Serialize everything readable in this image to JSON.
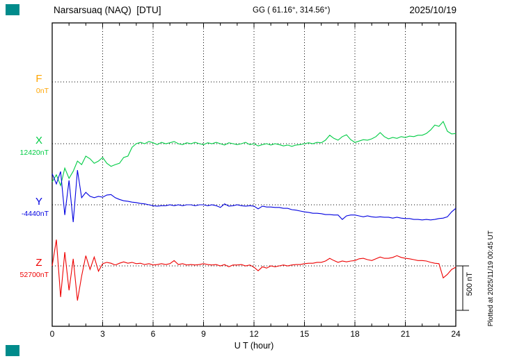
{
  "header": {
    "station_title": "Narsarsuaq (NAQ)  [DTU]",
    "coords_label": "GG ( 61.16°, 314.56°)",
    "date": "2025/10/19"
  },
  "side_note": "Plotted at 2025/11/19 00:45 UT",
  "scale_bar_label": "500 nT",
  "chart_data": {
    "type": "line",
    "title": "Narsarsuaq (NAQ) [DTU] magnetogram 2025/10/19",
    "xlabel": "U T (hour)",
    "x_min": 0,
    "x_max": 24,
    "x_ticks": [
      0,
      3,
      6,
      9,
      12,
      15,
      18,
      21,
      24
    ],
    "x_step_hours": 0.25,
    "scale_bar_nt": 500,
    "grid": "dotted horizontal line at each component baseline, dotted vertical lines every 3 hours",
    "legend_position": "left margin, stacked F/X/Y/Z with baseline values",
    "series": [
      {
        "name": "F",
        "color": "#ffa500",
        "baseline_label": "0nT",
        "baseline_nt": 0,
        "values": []
      },
      {
        "name": "X",
        "color": "#00cc44",
        "baseline_label": "12420nT",
        "baseline_nt": 12420,
        "values": [
          11990,
          12070,
          11950,
          12145,
          12030,
          12110,
          12225,
          12185,
          12280,
          12250,
          12200,
          12225,
          12265,
          12200,
          12165,
          12185,
          12200,
          12265,
          12280,
          12380,
          12420,
          12435,
          12420,
          12445,
          12430,
          12410,
          12435,
          12420,
          12430,
          12445,
          12420,
          12410,
          12430,
          12420,
          12435,
          12420,
          12410,
          12430,
          12420,
          12435,
          12420,
          12405,
          12430,
          12420,
          12410,
          12420,
          12435,
          12410,
          12420,
          12395,
          12410,
          12420,
          12405,
          12420,
          12410,
          12395,
          12405,
          12390,
          12405,
          12410,
          12420,
          12430,
          12420,
          12435,
          12430,
          12460,
          12515,
          12480,
          12460,
          12500,
          12520,
          12465,
          12435,
          12450,
          12465,
          12460,
          12475,
          12500,
          12545,
          12500,
          12475,
          12490,
          12480,
          12500,
          12490,
          12505,
          12500,
          12515,
          12515,
          12535,
          12575,
          12630,
          12615,
          12670,
          12560,
          12530,
          12535
        ]
      },
      {
        "name": "Y",
        "color": "#0000e0",
        "baseline_label": "-4440nT",
        "baseline_nt": -4440,
        "values": [
          -4090,
          -4205,
          -4065,
          -4555,
          -4165,
          -4635,
          -4050,
          -4360,
          -4300,
          -4345,
          -4360,
          -4345,
          -4355,
          -4330,
          -4325,
          -4360,
          -4380,
          -4395,
          -4400,
          -4410,
          -4415,
          -4425,
          -4430,
          -4440,
          -4450,
          -4455,
          -4450,
          -4450,
          -4440,
          -4450,
          -4440,
          -4450,
          -4440,
          -4440,
          -4450,
          -4440,
          -4440,
          -4450,
          -4440,
          -4450,
          -4470,
          -4430,
          -4455,
          -4450,
          -4440,
          -4450,
          -4455,
          -4450,
          -4455,
          -4485,
          -4455,
          -4465,
          -4465,
          -4470,
          -4470,
          -4480,
          -4480,
          -4495,
          -4500,
          -4510,
          -4520,
          -4525,
          -4535,
          -4535,
          -4540,
          -4550,
          -4550,
          -4555,
          -4555,
          -4605,
          -4565,
          -4555,
          -4555,
          -4565,
          -4575,
          -4565,
          -4575,
          -4580,
          -4575,
          -4580,
          -4580,
          -4590,
          -4580,
          -4590,
          -4595,
          -4595,
          -4605,
          -4605,
          -4610,
          -4605,
          -4610,
          -4605,
          -4595,
          -4590,
          -4575,
          -4520,
          -4480
        ]
      },
      {
        "name": "Z",
        "color": "#ee0000",
        "baseline_label": "52700nT",
        "baseline_nt": 52700,
        "values": [
          52700,
          52995,
          52350,
          52855,
          52425,
          52780,
          52310,
          52585,
          52815,
          52660,
          52800,
          52640,
          52725,
          52740,
          52730,
          52710,
          52730,
          52745,
          52730,
          52740,
          52725,
          52730,
          52715,
          52725,
          52710,
          52715,
          52725,
          52715,
          52725,
          52760,
          52715,
          52725,
          52710,
          52715,
          52710,
          52715,
          52725,
          52715,
          52710,
          52715,
          52700,
          52715,
          52690,
          52710,
          52710,
          52715,
          52700,
          52710,
          52685,
          52645,
          52690,
          52675,
          52700,
          52690,
          52700,
          52710,
          52700,
          52710,
          52715,
          52715,
          52725,
          52730,
          52730,
          52740,
          52740,
          52755,
          52785,
          52760,
          52740,
          52755,
          52745,
          52755,
          52760,
          52780,
          52785,
          52770,
          52760,
          52780,
          52800,
          52785,
          52785,
          52795,
          52815,
          52795,
          52785,
          52780,
          52770,
          52760,
          52760,
          52755,
          52740,
          52730,
          52725,
          52565,
          52605,
          52660,
          52685
        ]
      }
    ]
  }
}
